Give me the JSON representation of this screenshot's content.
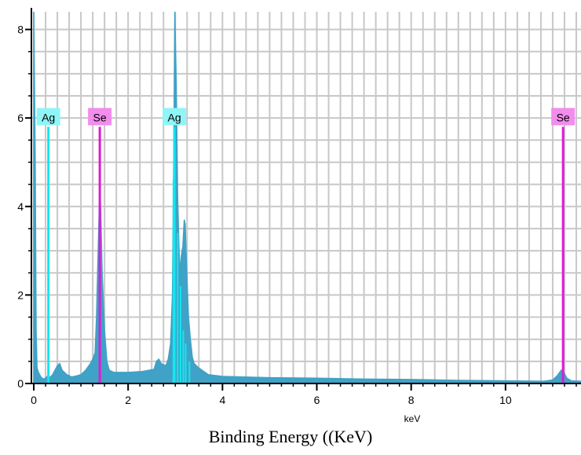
{
  "chart_data": {
    "type": "area",
    "xlabel": "Binding Energy ((KeV)",
    "unit_label": "keV",
    "xlim": [
      -0.05,
      11.6
    ],
    "ylim": [
      0,
      8.4
    ],
    "x_ticks": [
      0,
      2,
      4,
      6,
      8,
      10
    ],
    "y_ticks": [
      0,
      2,
      4,
      6,
      8
    ],
    "grid": true,
    "colors": {
      "spectrum": "#3fa2c6",
      "spectrum_highlight": "#14e6f0",
      "Ag": "#14e6f0",
      "Se": "#e01ad8",
      "Ag_tag_bg": "#8ff5f7",
      "Se_tag_bg": "#f28ced",
      "grid": "#c8c8c8"
    },
    "series": [
      {
        "values": [
          [
            0.0,
            8.4
          ],
          [
            0.03,
            5.1
          ],
          [
            0.05,
            1.2
          ],
          [
            0.07,
            0.35
          ],
          [
            0.1,
            0.25
          ],
          [
            0.15,
            0.15
          ],
          [
            0.2,
            0.1
          ],
          [
            0.25,
            0.12
          ],
          [
            0.3,
            0.18
          ],
          [
            0.35,
            0.14
          ],
          [
            0.4,
            0.2
          ],
          [
            0.45,
            0.3
          ],
          [
            0.5,
            0.4
          ],
          [
            0.55,
            0.45
          ],
          [
            0.6,
            0.3
          ],
          [
            0.7,
            0.2
          ],
          [
            0.8,
            0.15
          ],
          [
            0.9,
            0.17
          ],
          [
            1.0,
            0.2
          ],
          [
            1.1,
            0.3
          ],
          [
            1.2,
            0.45
          ],
          [
            1.25,
            0.55
          ],
          [
            1.3,
            0.7
          ],
          [
            1.33,
            1.5
          ],
          [
            1.36,
            2.8
          ],
          [
            1.38,
            3.6
          ],
          [
            1.4,
            4.4
          ],
          [
            1.42,
            3.9
          ],
          [
            1.45,
            2.5
          ],
          [
            1.5,
            1.2
          ],
          [
            1.55,
            0.5
          ],
          [
            1.6,
            0.3
          ],
          [
            1.7,
            0.25
          ],
          [
            2.0,
            0.25
          ],
          [
            2.3,
            0.27
          ],
          [
            2.55,
            0.32
          ],
          [
            2.6,
            0.5
          ],
          [
            2.65,
            0.55
          ],
          [
            2.7,
            0.45
          ],
          [
            2.8,
            0.4
          ],
          [
            2.85,
            0.55
          ],
          [
            2.9,
            0.9
          ],
          [
            2.94,
            2.0
          ],
          [
            2.97,
            5.5
          ],
          [
            2.99,
            8.4
          ],
          [
            3.02,
            6.8
          ],
          [
            3.05,
            4.2
          ],
          [
            3.08,
            3.0
          ],
          [
            3.1,
            2.5
          ],
          [
            3.13,
            2.9
          ],
          [
            3.16,
            3.1
          ],
          [
            3.19,
            3.7
          ],
          [
            3.21,
            3.6
          ],
          [
            3.24,
            2.6
          ],
          [
            3.28,
            1.5
          ],
          [
            3.32,
            1.0
          ],
          [
            3.36,
            0.6
          ],
          [
            3.4,
            0.45
          ],
          [
            3.5,
            0.35
          ],
          [
            3.7,
            0.2
          ],
          [
            4.0,
            0.16
          ],
          [
            5.0,
            0.13
          ],
          [
            6.0,
            0.12
          ],
          [
            7.0,
            0.1
          ],
          [
            8.0,
            0.09
          ],
          [
            9.0,
            0.07
          ],
          [
            10.0,
            0.06
          ],
          [
            10.8,
            0.05
          ],
          [
            11.0,
            0.08
          ],
          [
            11.1,
            0.18
          ],
          [
            11.18,
            0.3
          ],
          [
            11.22,
            0.28
          ],
          [
            11.3,
            0.12
          ],
          [
            11.4,
            0.06
          ],
          [
            11.6,
            0.05
          ]
        ]
      }
    ],
    "peak_markers": [
      {
        "label": "Ag",
        "x": 0.31,
        "height": 5.8,
        "element": "Ag"
      },
      {
        "label": "Se",
        "x": 1.4,
        "height": 5.8,
        "element": "Se"
      },
      {
        "label": "Ag",
        "x": 2.98,
        "height": 5.8,
        "element": "Ag"
      },
      {
        "label": "Se",
        "x": 11.22,
        "height": 5.8,
        "element": "Se"
      }
    ]
  }
}
